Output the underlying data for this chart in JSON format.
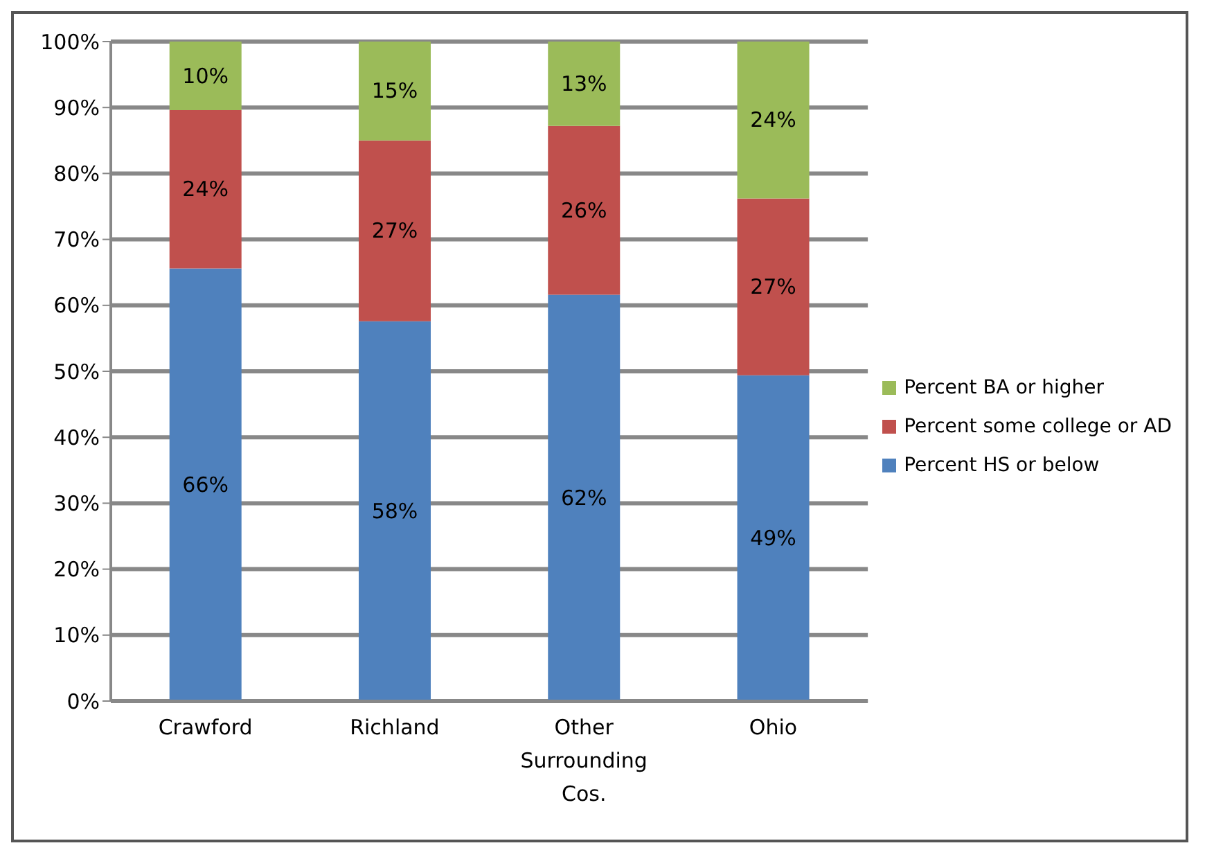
{
  "chart_data": {
    "type": "bar",
    "stacked": true,
    "categories": [
      "Crawford",
      "Richland",
      "Other Surrounding Cos.",
      "Ohio"
    ],
    "series": [
      {
        "name": "Percent HS or below",
        "color": "#4f81bd",
        "values": [
          65.6,
          57.6,
          61.6,
          49.4
        ],
        "value_labels": [
          "66%",
          "58%",
          "62%",
          "49%"
        ]
      },
      {
        "name": "Percent some college or AD",
        "color": "#c0504d",
        "values": [
          24.0,
          27.4,
          25.6,
          26.8
        ],
        "value_labels": [
          "24%",
          "27%",
          "26%",
          "27%"
        ]
      },
      {
        "name": "Percent BA or higher",
        "color": "#9bbb59",
        "values": [
          10.4,
          15.0,
          12.8,
          23.8
        ],
        "value_labels": [
          "10%",
          "15%",
          "13%",
          "24%"
        ]
      }
    ],
    "ylim": [
      0,
      100
    ],
    "yticks": [
      {
        "value": 0,
        "label": "0%"
      },
      {
        "value": 10,
        "label": "10%"
      },
      {
        "value": 20,
        "label": "20%"
      },
      {
        "value": 30,
        "label": "30%"
      },
      {
        "value": 40,
        "label": "40%"
      },
      {
        "value": 50,
        "label": "50%"
      },
      {
        "value": 60,
        "label": "60%"
      },
      {
        "value": 70,
        "label": "70%"
      },
      {
        "value": 80,
        "label": "80%"
      },
      {
        "value": 90,
        "label": "90%"
      },
      {
        "value": 100,
        "label": "100%"
      }
    ],
    "grid": "y",
    "legend": "right"
  }
}
